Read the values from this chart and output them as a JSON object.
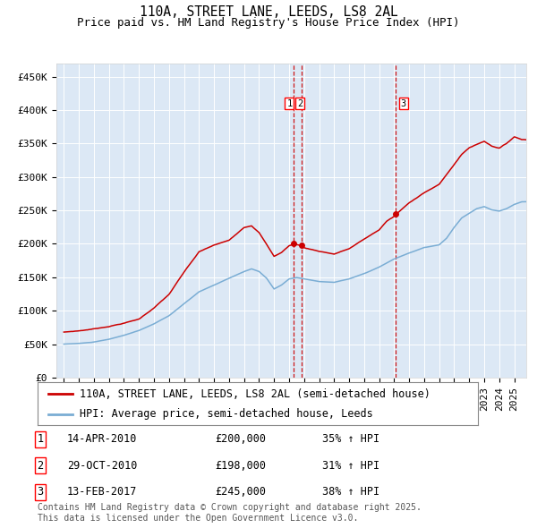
{
  "title": "110A, STREET LANE, LEEDS, LS8 2AL",
  "subtitle": "Price paid vs. HM Land Registry's House Price Index (HPI)",
  "ylabel_ticks": [
    "£0",
    "£50K",
    "£100K",
    "£150K",
    "£200K",
    "£250K",
    "£300K",
    "£350K",
    "£400K",
    "£450K"
  ],
  "ytick_values": [
    0,
    50000,
    100000,
    150000,
    200000,
    250000,
    300000,
    350000,
    400000,
    450000
  ],
  "ylim": [
    0,
    470000
  ],
  "xlim_start": 1994.5,
  "xlim_end": 2025.8,
  "bg_color": "#dce8f5",
  "line1_color": "#cc0000",
  "line2_color": "#7aadd4",
  "vline_color": "#cc0000",
  "legend_line1": "110A, STREET LANE, LEEDS, LS8 2AL (semi-detached house)",
  "legend_line2": "HPI: Average price, semi-detached house, Leeds",
  "sale1_label": "1",
  "sale1_date": "14-APR-2010",
  "sale1_price": "£200,000",
  "sale1_hpi": "35% ↑ HPI",
  "sale1_year": 2010.29,
  "sale2_label": "2",
  "sale2_date": "29-OCT-2010",
  "sale2_price": "£198,000",
  "sale2_hpi": "31% ↑ HPI",
  "sale2_year": 2010.83,
  "sale3_label": "3",
  "sale3_date": "13-FEB-2017",
  "sale3_price": "£245,000",
  "sale3_hpi": "38% ↑ HPI",
  "sale3_year": 2017.12,
  "footnote1": "Contains HM Land Registry data © Crown copyright and database right 2025.",
  "footnote2": "This data is licensed under the Open Government Licence v3.0.",
  "title_fontsize": 10.5,
  "subtitle_fontsize": 9,
  "tick_fontsize": 8,
  "legend_fontsize": 8.5,
  "table_fontsize": 8.5,
  "footnote_fontsize": 7
}
